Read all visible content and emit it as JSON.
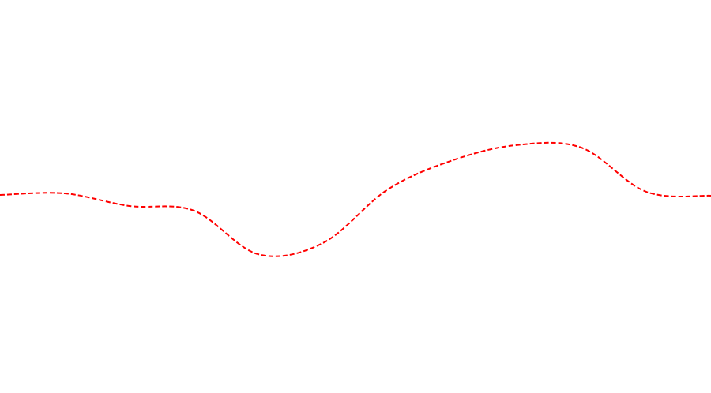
{
  "chart_data": {
    "type": "line",
    "x": [
      0,
      1,
      2,
      3,
      4,
      5,
      6,
      7,
      8,
      9,
      10,
      11
    ],
    "xlim": [
      0,
      11
    ],
    "ylim": [
      0,
      100
    ],
    "line_style": "dashed",
    "smooth": true,
    "series": [
      {
        "color": "#ff0000",
        "values": [
          50.4,
          50.8,
          47.6,
          46.4,
          35.3,
          38.2,
          51.8,
          59.2,
          63.1,
          62.4,
          51.2,
          50.2
        ]
      }
    ]
  }
}
